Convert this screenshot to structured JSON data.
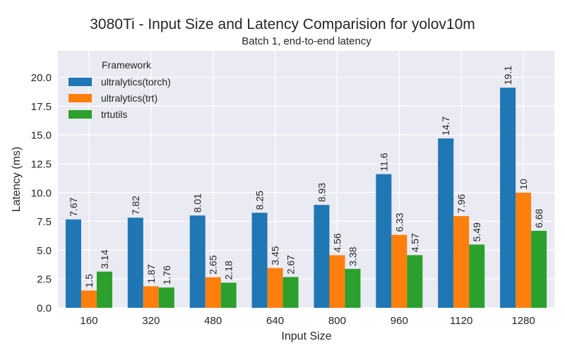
{
  "chart_data": {
    "type": "bar",
    "title": "3080Ti - Input Size and Latency Comparision for yolov10m",
    "subtitle": "Batch 1, end-to-end latency",
    "xlabel": "Input Size",
    "ylabel": "Latency (ms)",
    "categories": [
      "160",
      "320",
      "480",
      "640",
      "800",
      "960",
      "1120",
      "1280"
    ],
    "ylim": [
      0,
      22.3
    ],
    "yticks": [
      "0.0",
      "2.5",
      "5.0",
      "7.5",
      "10.0",
      "12.5",
      "15.0",
      "17.5",
      "20.0"
    ],
    "grid": true,
    "legend": {
      "title": "Framework",
      "placement": "top-left"
    },
    "series": [
      {
        "name": "ultralytics(torch)",
        "color": "#1f77b4",
        "values": [
          7.67,
          7.82,
          8.01,
          8.25,
          8.93,
          11.6,
          14.7,
          19.1
        ],
        "labels": [
          "7.67",
          "7.82",
          "8.01",
          "8.25",
          "8.93",
          "11.6",
          "14.7",
          "19.1"
        ]
      },
      {
        "name": "ultralytics(trt)",
        "color": "#ff7f0e",
        "values": [
          1.5,
          1.87,
          2.65,
          3.45,
          4.56,
          6.33,
          7.96,
          10
        ],
        "labels": [
          "1.5",
          "1.87",
          "2.65",
          "3.45",
          "4.56",
          "6.33",
          "7.96",
          "10"
        ]
      },
      {
        "name": "trtutils",
        "color": "#2ca02c",
        "values": [
          3.14,
          1.76,
          2.18,
          2.67,
          3.38,
          4.57,
          5.49,
          6.68
        ],
        "labels": [
          "3.14",
          "1.76",
          "2.18",
          "2.67",
          "3.38",
          "4.57",
          "5.49",
          "6.68"
        ]
      }
    ]
  }
}
